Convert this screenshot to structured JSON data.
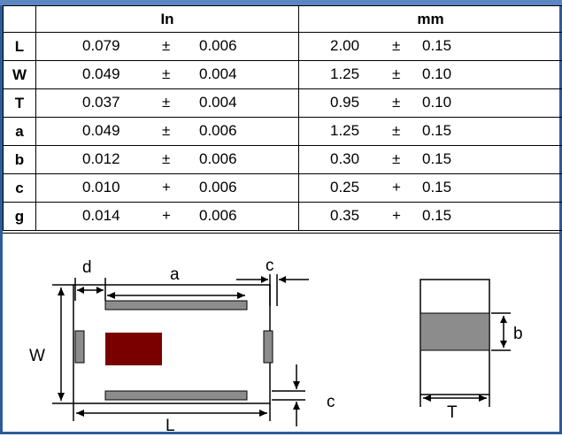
{
  "table": {
    "header": {
      "col_in": "In",
      "col_mm": "mm"
    },
    "rows": [
      {
        "sym": "L",
        "in_nom": "0.079",
        "in_sign": "±",
        "in_tol": "0.006",
        "mm_nom": "2.00",
        "mm_sign": "±",
        "mm_tol": "0.15"
      },
      {
        "sym": "W",
        "in_nom": "0.049",
        "in_sign": "±",
        "in_tol": "0.004",
        "mm_nom": "1.25",
        "mm_sign": "±",
        "mm_tol": "0.10"
      },
      {
        "sym": "T",
        "in_nom": "0.037",
        "in_sign": "±",
        "in_tol": "0.004",
        "mm_nom": "0.95",
        "mm_sign": "±",
        "mm_tol": "0.10"
      },
      {
        "sym": "a",
        "in_nom": "0.049",
        "in_sign": "±",
        "in_tol": "0.006",
        "mm_nom": "1.25",
        "mm_sign": "±",
        "mm_tol": "0.15"
      },
      {
        "sym": "b",
        "in_nom": "0.012",
        "in_sign": "±",
        "in_tol": "0.006",
        "mm_nom": "0.30",
        "mm_sign": "±",
        "mm_tol": "0.15"
      },
      {
        "sym": "c",
        "in_nom": "0.010",
        "in_sign": "+",
        "in_tol": "0.006",
        "mm_nom": "0.25",
        "mm_sign": "+",
        "mm_tol": "0.15"
      },
      {
        "sym": "g",
        "in_nom": "0.014",
        "in_sign": "+",
        "in_tol": "0.006",
        "mm_nom": "0.35",
        "mm_sign": "+",
        "mm_tol": "0.15"
      }
    ]
  },
  "diagram": {
    "label_d": "d",
    "label_a": "a",
    "label_c_top": "c",
    "label_w": "W",
    "label_c_bottom": "c",
    "label_l": "L",
    "label_b": "b",
    "label_t": "T"
  },
  "colors": {
    "frame": "#2f5c98",
    "pad": "#8c8c8c",
    "element": "#7a0000"
  }
}
